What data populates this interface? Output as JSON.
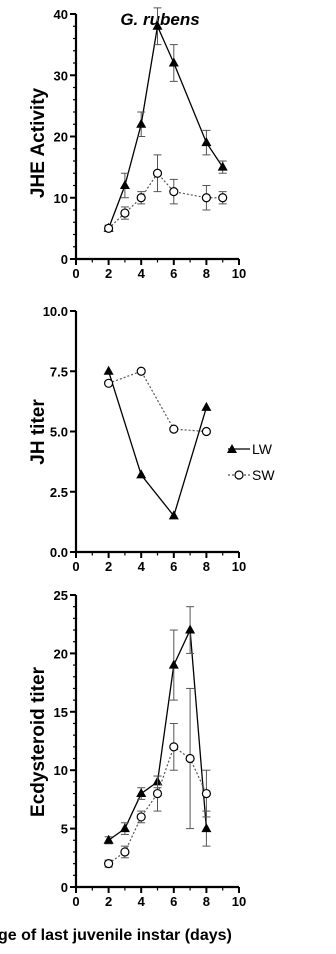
{
  "figure": {
    "xlabel": "ge of last juvenile instar (days)"
  },
  "legend": {
    "items": [
      {
        "label": "LW",
        "marker": "triangle-filled",
        "line": "solid"
      },
      {
        "label": "SW",
        "marker": "circle-open",
        "line": "dotted"
      }
    ]
  },
  "colors": {
    "ink": "#000000",
    "open_fill": "#ffffff",
    "dotted_line": "#555555",
    "error_bar": "#555555"
  },
  "chart_data": [
    {
      "type": "line",
      "title": "G. rubens",
      "ylabel": "JHE Activity",
      "xlabel": "",
      "xlim": [
        0,
        10
      ],
      "ylim": [
        0,
        40
      ],
      "xticks": [
        0,
        2,
        4,
        6,
        8,
        10
      ],
      "yticks": [
        0,
        10,
        20,
        30,
        40
      ],
      "ytick_labels": [
        "0",
        "10",
        "20",
        "30",
        "40"
      ],
      "series": [
        {
          "name": "LW",
          "x": [
            2,
            3,
            4,
            5,
            6,
            8,
            9
          ],
          "y": [
            5,
            12,
            22,
            38,
            32,
            19,
            15
          ],
          "err": [
            0.5,
            2,
            2,
            3,
            3,
            2,
            1
          ]
        },
        {
          "name": "SW",
          "x": [
            2,
            3,
            4,
            5,
            6,
            8,
            9
          ],
          "y": [
            5,
            7.5,
            10,
            14,
            11,
            10,
            10
          ],
          "err": [
            0.5,
            1,
            1,
            3,
            2,
            2,
            1
          ]
        }
      ]
    },
    {
      "type": "line",
      "title": "",
      "ylabel": "JH titer",
      "xlabel": "",
      "xlim": [
        0,
        10
      ],
      "ylim": [
        0,
        10
      ],
      "xticks": [
        0,
        2,
        4,
        6,
        8,
        10
      ],
      "yticks": [
        0,
        2.5,
        5,
        7.5,
        10
      ],
      "ytick_labels": [
        "0.0",
        "2.5",
        "5.0",
        "7.5",
        "10.0"
      ],
      "series": [
        {
          "name": "LW",
          "x": [
            2,
            4,
            6,
            8
          ],
          "y": [
            7.5,
            3.2,
            1.5,
            6.0
          ]
        },
        {
          "name": "SW",
          "x": [
            2,
            4,
            6,
            8
          ],
          "y": [
            7.0,
            7.5,
            5.1,
            5.0
          ]
        }
      ]
    },
    {
      "type": "line",
      "title": "",
      "ylabel": "Ecdysteroid titer",
      "xlabel": "",
      "xlim": [
        0,
        10
      ],
      "ylim": [
        0,
        25
      ],
      "xticks": [
        0,
        2,
        4,
        6,
        8,
        10
      ],
      "yticks": [
        0,
        5,
        10,
        15,
        20,
        25
      ],
      "ytick_labels": [
        "0",
        "5",
        "10",
        "15",
        "20",
        "25"
      ],
      "series": [
        {
          "name": "LW",
          "x": [
            2,
            3,
            4,
            5,
            6,
            7,
            8
          ],
          "y": [
            4,
            5,
            8,
            9,
            19,
            22,
            5
          ],
          "err": [
            0.3,
            0.5,
            0.5,
            0.5,
            3,
            2,
            1.5
          ]
        },
        {
          "name": "SW",
          "x": [
            2,
            3,
            4,
            5,
            6,
            7,
            8
          ],
          "y": [
            2,
            3,
            6,
            8,
            12,
            11,
            8
          ],
          "err": [
            0.3,
            0.5,
            0.5,
            1.5,
            2,
            6,
            2
          ]
        }
      ]
    }
  ]
}
